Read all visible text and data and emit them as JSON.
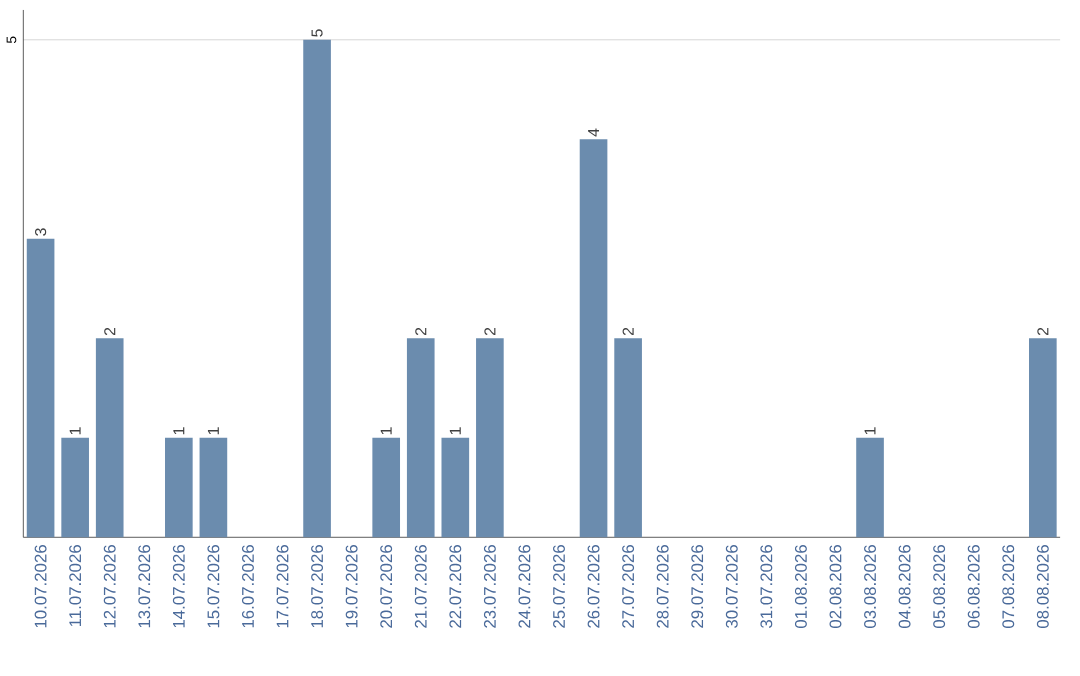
{
  "chart_data": {
    "type": "bar",
    "categories": [
      "10.07.2026",
      "11.07.2026",
      "12.07.2026",
      "13.07.2026",
      "14.07.2026",
      "15.07.2026",
      "16.07.2026",
      "17.07.2026",
      "18.07.2026",
      "19.07.2026",
      "20.07.2026",
      "21.07.2026",
      "22.07.2026",
      "23.07.2026",
      "24.07.2026",
      "25.07.2026",
      "26.07.2026",
      "27.07.2026",
      "28.07.2026",
      "29.07.2026",
      "30.07.2026",
      "31.07.2026",
      "01.08.2026",
      "02.08.2026",
      "03.08.2026",
      "04.08.2026",
      "05.08.2026",
      "06.08.2026",
      "07.08.2026",
      "08.08.2026"
    ],
    "values": [
      3,
      1,
      2,
      0,
      1,
      1,
      0,
      0,
      5,
      0,
      1,
      2,
      1,
      2,
      0,
      0,
      4,
      2,
      0,
      0,
      0,
      0,
      0,
      0,
      1,
      0,
      0,
      0,
      0,
      2
    ],
    "value_labels": [
      "3",
      "1",
      "2",
      null,
      "1",
      "1",
      null,
      null,
      "5",
      null,
      "1",
      "2",
      "1",
      "2",
      null,
      null,
      "4",
      "2",
      null,
      null,
      null,
      null,
      null,
      null,
      "1",
      null,
      null,
      null,
      null,
      "2"
    ],
    "color": "#6b8cae",
    "ylim": [
      0,
      5.3
    ],
    "yticks": [
      5
    ],
    "grid": "y"
  }
}
